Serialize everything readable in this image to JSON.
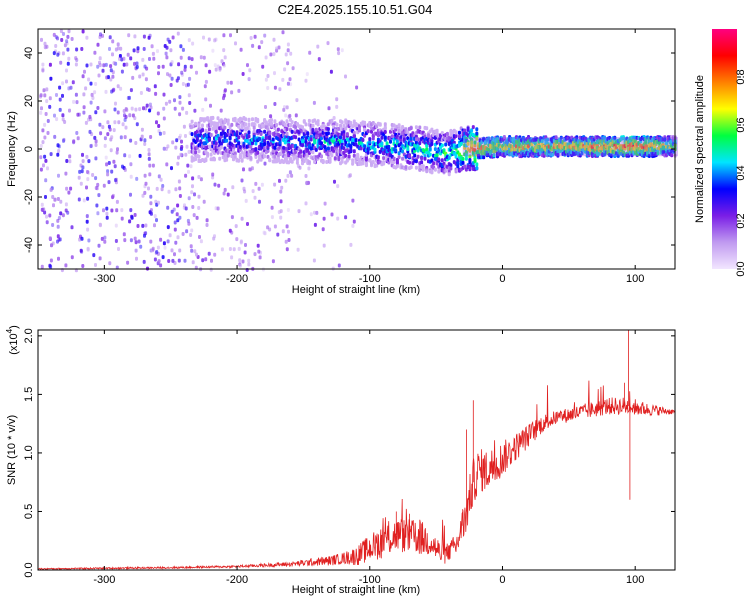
{
  "title": "C2E4.2025.155.10.51.G04",
  "chart_data": [
    {
      "type": "heatmap",
      "xlabel": "Height of straight line (km)",
      "ylabel": "Frequency (Hz)",
      "xlim": [
        -350,
        130
      ],
      "ylim": [
        -50,
        50
      ],
      "x_ticks": [
        -300,
        -200,
        -100,
        0,
        100
      ],
      "y_ticks": [
        -40,
        -20,
        0,
        20,
        40
      ],
      "x_tick_labels": [
        "-300",
        "-200",
        "-100",
        "0",
        "100"
      ],
      "y_tick_labels": [
        "-40",
        "-20",
        "0",
        "20",
        "40"
      ],
      "colorbar": {
        "label": "Normalized spectral amplitude",
        "range": [
          0,
          1
        ],
        "ticks": [
          0.0,
          0.2,
          0.4,
          0.6,
          0.8
        ],
        "tick_labels": [
          "0.0",
          "0.2",
          "0.4",
          "0.6",
          "0.8"
        ],
        "colormap": [
          "#f2e6ff",
          "#c09af0",
          "#7a1ee6",
          "#0000ff",
          "#00e5ff",
          "#00ff40",
          "#ffff00",
          "#ff8000",
          "#ff0000",
          "#ff0080"
        ]
      },
      "band": {
        "center_hz_by_height": [
          [
            -230,
            4
          ],
          [
            -200,
            4
          ],
          [
            -150,
            3
          ],
          [
            -120,
            3
          ],
          [
            -100,
            2
          ],
          [
            -80,
            1
          ],
          [
            -60,
            0
          ],
          [
            -45,
            -2
          ],
          [
            -30,
            0
          ],
          [
            0,
            1
          ],
          [
            50,
            1
          ],
          [
            100,
            1
          ],
          [
            130,
            1
          ]
        ],
        "amplitude_by_height": [
          [
            -230,
            0.35
          ],
          [
            -150,
            0.4
          ],
          [
            -80,
            0.45
          ],
          [
            -40,
            0.5
          ],
          [
            -20,
            0.75
          ],
          [
            0,
            0.7
          ],
          [
            50,
            0.7
          ],
          [
            100,
            0.8
          ],
          [
            130,
            0.6
          ]
        ]
      }
    },
    {
      "type": "line",
      "xlabel": "Height of straight line (km)",
      "ylabel": "SNR (10 * v/v)",
      "scale_note": "(x10",
      "scale_exp": "4",
      "xlim": [
        -350,
        130
      ],
      "ylim": [
        0,
        2.05
      ],
      "x_ticks": [
        -300,
        -200,
        -100,
        0,
        100
      ],
      "y_ticks": [
        0.0,
        0.5,
        1.0,
        1.5,
        2.0
      ],
      "x_tick_labels": [
        "-300",
        "-200",
        "-100",
        "0",
        "100"
      ],
      "y_tick_labels": [
        "0.0",
        "0.5",
        "1.0",
        "1.5",
        "2.0"
      ],
      "color": "#e02020",
      "envelope": [
        [
          -350,
          0.01
        ],
        [
          -250,
          0.02
        ],
        [
          -200,
          0.03
        ],
        [
          -160,
          0.05
        ],
        [
          -130,
          0.08
        ],
        [
          -110,
          0.12
        ],
        [
          -90,
          0.25
        ],
        [
          -80,
          0.3
        ],
        [
          -65,
          0.28
        ],
        [
          -55,
          0.25
        ],
        [
          -45,
          0.12
        ],
        [
          -35,
          0.2
        ],
        [
          -28,
          0.45
        ],
        [
          -22,
          0.75
        ],
        [
          -18,
          0.85
        ],
        [
          -12,
          0.85
        ],
        [
          -5,
          0.9
        ],
        [
          0,
          0.95
        ],
        [
          10,
          1.05
        ],
        [
          20,
          1.15
        ],
        [
          30,
          1.25
        ],
        [
          40,
          1.3
        ],
        [
          60,
          1.35
        ],
        [
          80,
          1.4
        ],
        [
          95,
          1.4
        ],
        [
          110,
          1.37
        ],
        [
          130,
          1.35
        ]
      ],
      "noise": [
        [
          -350,
          0.005
        ],
        [
          -200,
          0.01
        ],
        [
          -160,
          0.02
        ],
        [
          -120,
          0.05
        ],
        [
          -90,
          0.15
        ],
        [
          -60,
          0.15
        ],
        [
          -40,
          0.08
        ],
        [
          -25,
          0.2
        ],
        [
          -10,
          0.18
        ],
        [
          10,
          0.12
        ],
        [
          40,
          0.06
        ],
        [
          70,
          0.07
        ],
        [
          95,
          0.08
        ],
        [
          130,
          0.02
        ]
      ],
      "spikes": [
        [
          -22,
          1.45
        ],
        [
          -27,
          1.2
        ],
        [
          -80,
          0.5
        ],
        [
          -70,
          0.48
        ],
        [
          -30,
          0.52
        ],
        [
          95,
          2.05
        ],
        [
          96,
          0.6
        ],
        [
          92,
          1.6
        ]
      ]
    }
  ]
}
